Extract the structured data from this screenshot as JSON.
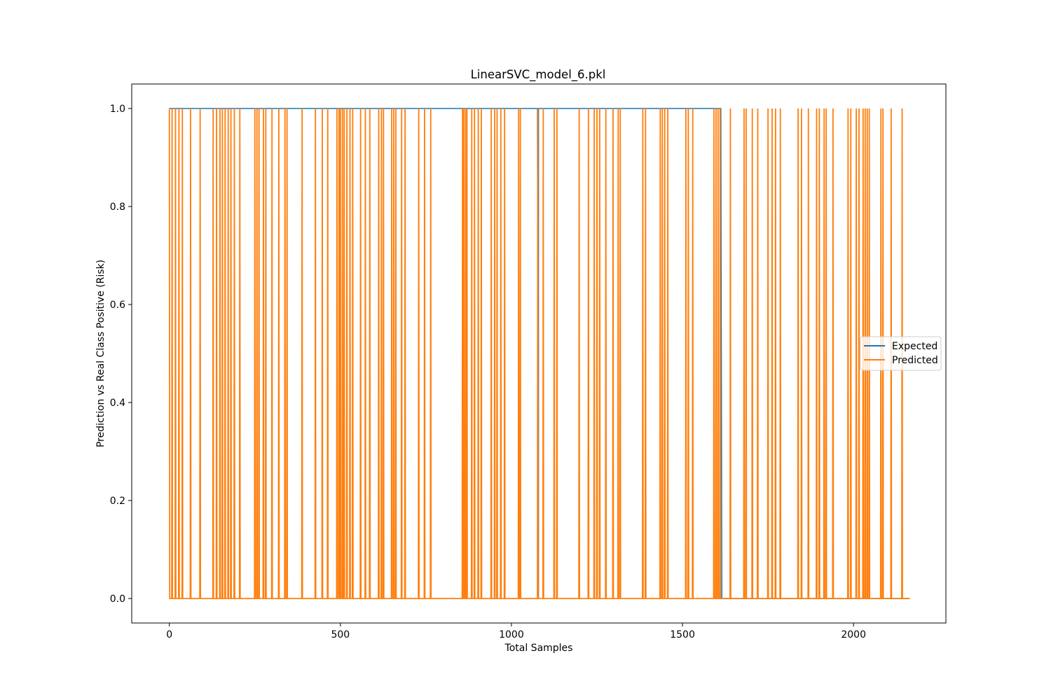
{
  "chart_data": {
    "type": "line",
    "title": "LinearSVC_model_6.pkl",
    "xlabel": "Total Samples",
    "ylabel": "Prediction vs Real Class Positive (Risk)",
    "xlim": [
      -110,
      2270
    ],
    "ylim": [
      -0.05,
      1.05
    ],
    "xticks": [
      0,
      500,
      1000,
      1500,
      2000
    ],
    "xtick_labels": [
      "0",
      "500",
      "1000",
      "1500",
      "2000"
    ],
    "yticks": [
      0.0,
      0.2,
      0.4,
      0.6,
      0.8,
      1.0
    ],
    "ytick_labels": [
      "0.0",
      "0.2",
      "0.4",
      "0.6",
      "0.8",
      "1.0"
    ],
    "grid": false,
    "legend": {
      "position": "center-right"
    },
    "series": [
      {
        "name": "Expected",
        "color": "#1f77b4",
        "n_samples": 2165,
        "segments_value_1": [
          [
            0,
            1079
          ],
          [
            1079,
            1615
          ]
        ],
        "transitions": [
          [
            1075,
            0
          ],
          [
            1079,
            1
          ],
          [
            1615,
            0
          ]
        ]
      },
      {
        "name": "Predicted",
        "color": "#ff7f0e",
        "n_samples": 2165,
        "spike_x_at_1": [
          0,
          8,
          18,
          28,
          38,
          62,
          90,
          128,
          138,
          148,
          155,
          163,
          172,
          180,
          190,
          206,
          250,
          256,
          262,
          275,
          282,
          300,
          320,
          338,
          344,
          388,
          427,
          447,
          463,
          490,
          496,
          500,
          506,
          511,
          519,
          528,
          536,
          559,
          573,
          586,
          612,
          620,
          626,
          650,
          656,
          662,
          679,
          689,
          729,
          746,
          764,
          857,
          861,
          866,
          870,
          884,
          892,
          903,
          912,
          941,
          951,
          958,
          969,
          980,
          1021,
          1026,
          1077,
          1093,
          1125,
          1133,
          1198,
          1225,
          1242,
          1250,
          1258,
          1276,
          1297,
          1312,
          1318,
          1384,
          1392,
          1435,
          1441,
          1448,
          1457,
          1510,
          1517,
          1530,
          1592,
          1598,
          1604,
          1610,
          1640,
          1680,
          1686,
          1704,
          1720,
          1750,
          1762,
          1772,
          1786,
          1838,
          1848,
          1868,
          1892,
          1900,
          1914,
          1920,
          1940,
          1984,
          1992,
          2008,
          2016,
          2028,
          2034,
          2040,
          2046,
          2080,
          2086,
          2110,
          2142
        ]
      }
    ]
  }
}
